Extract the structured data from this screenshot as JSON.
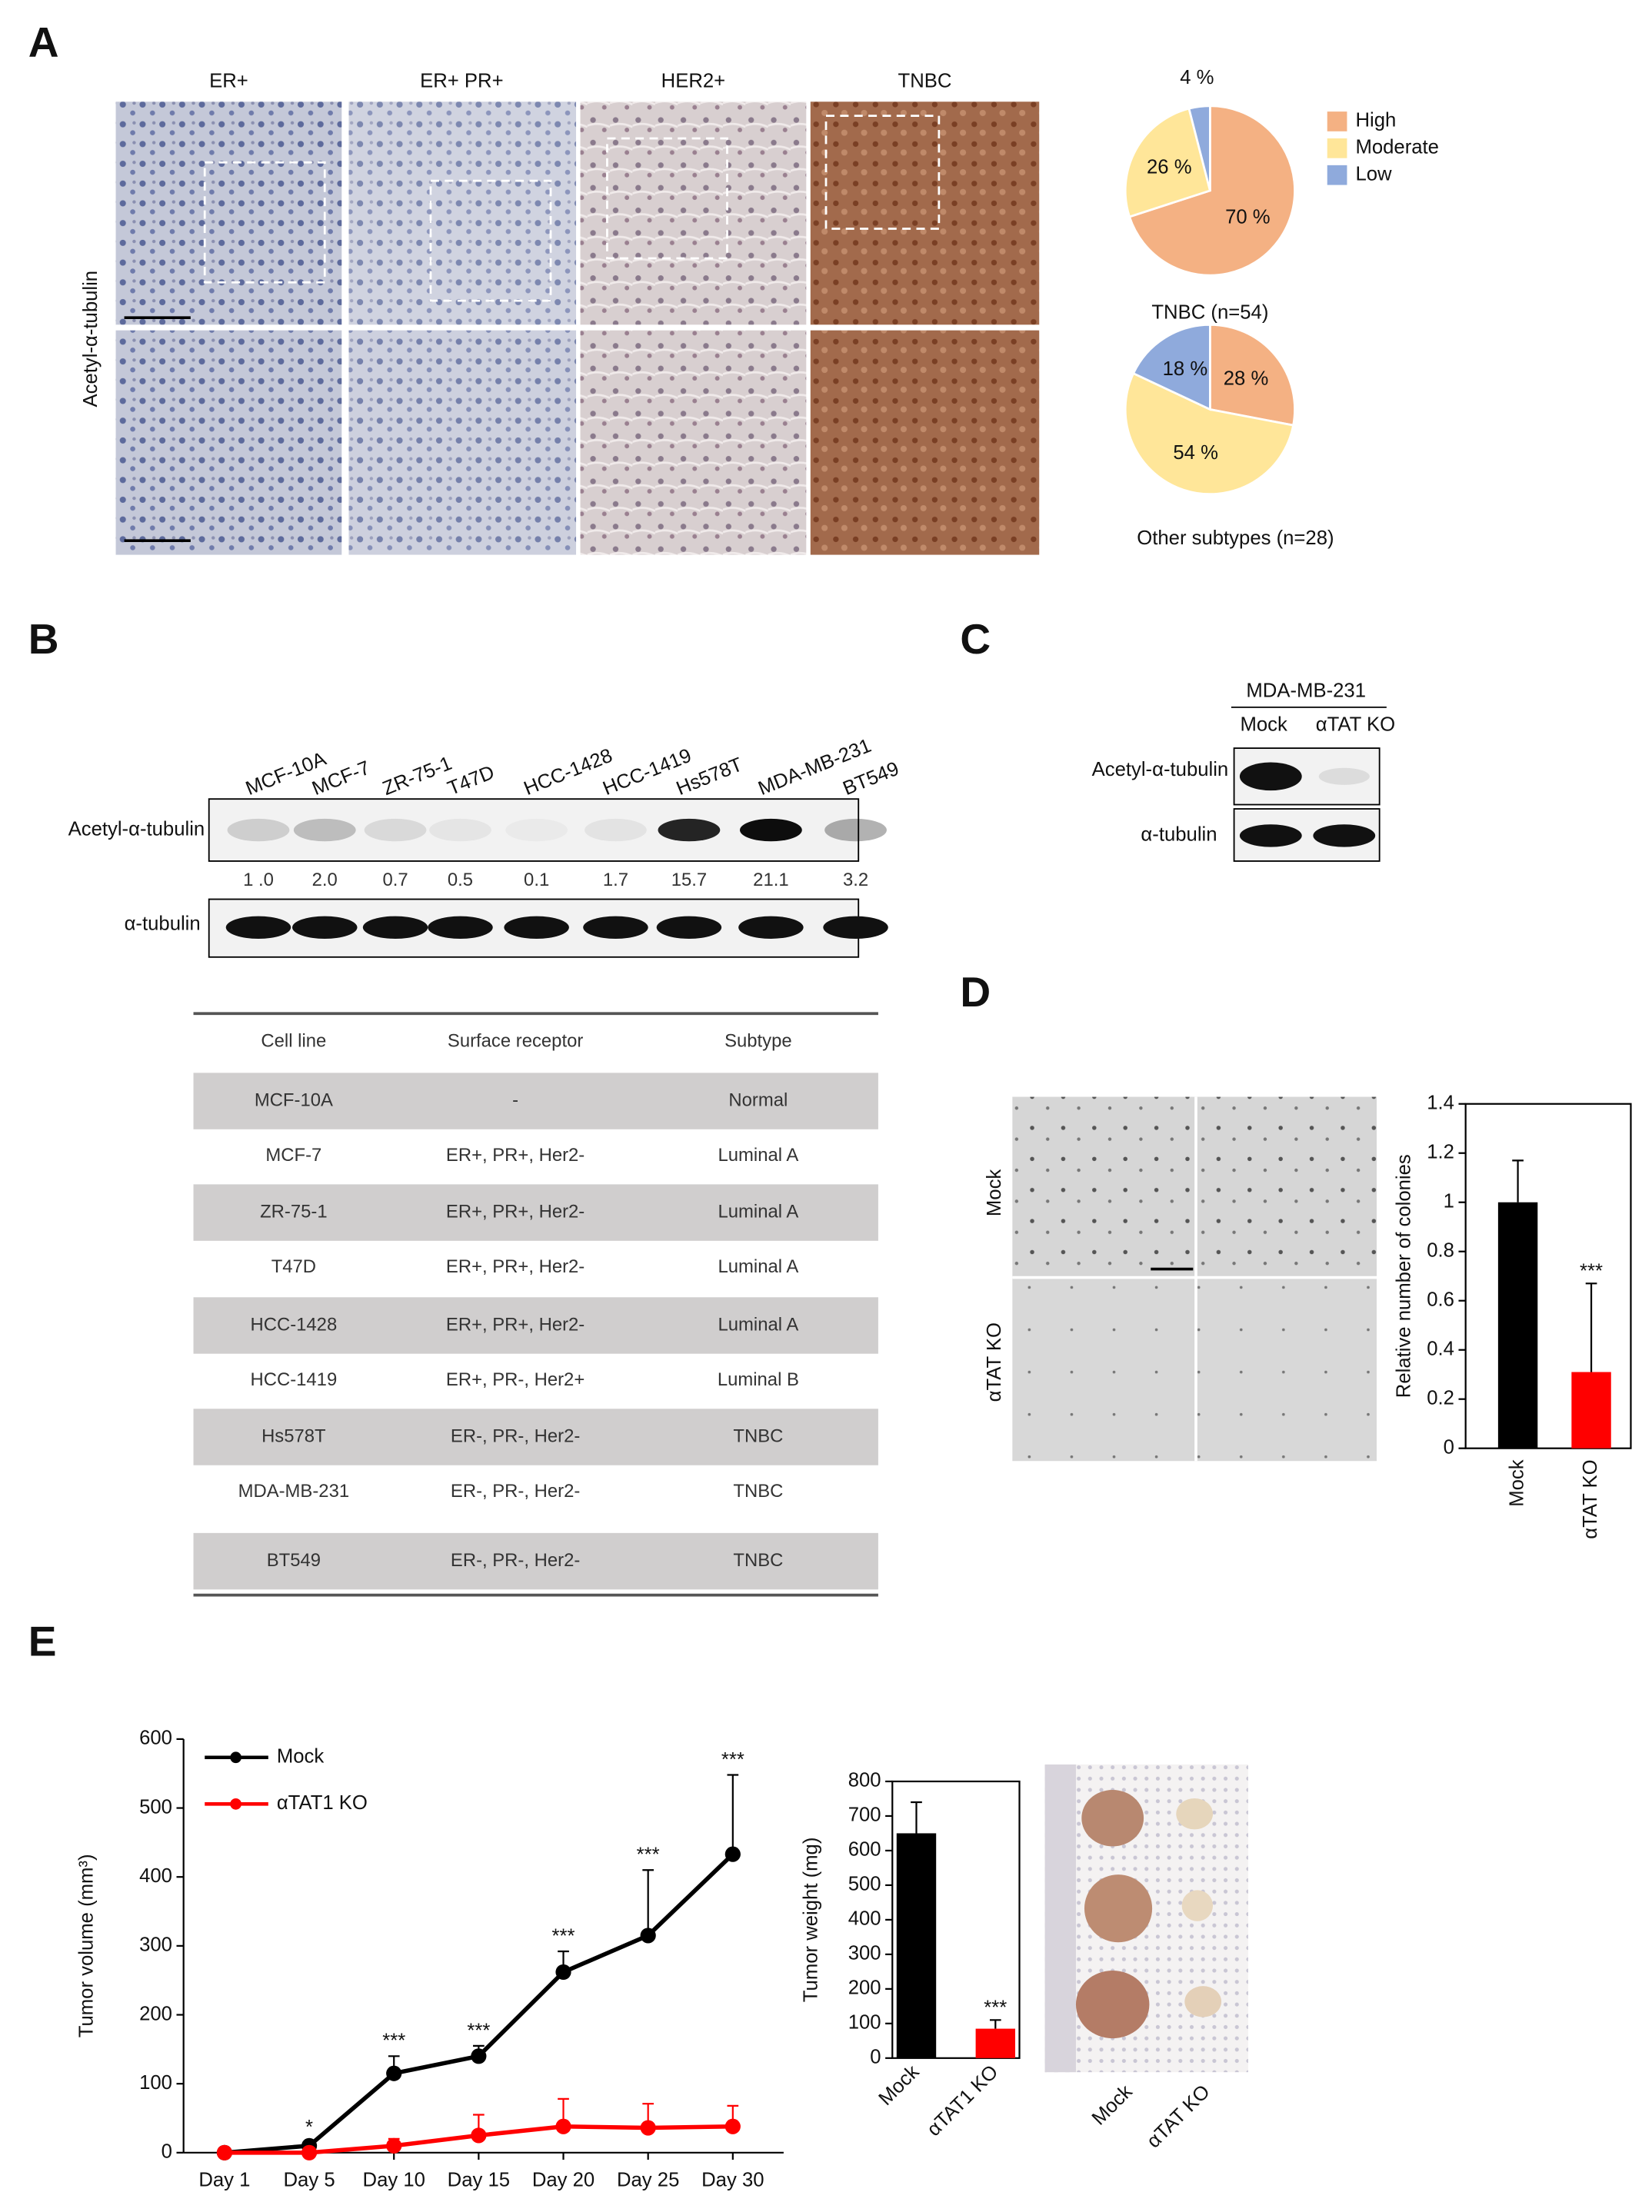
{
  "panel_labels": [
    "A",
    "B",
    "C",
    "D",
    "E"
  ],
  "panel_a": {
    "columns": [
      "ER+",
      "ER+  PR+",
      "HER2+",
      "TNBC"
    ],
    "row_label": "Acetyl-α-tubulin"
  },
  "panel_b": {
    "lanes": [
      "MCF-10A",
      "MCF-7",
      "ZR-75-1",
      "T47D",
      "HCC-1428",
      "HCC-1419",
      "Hs578T",
      "MDA-MB-231",
      "BT549"
    ],
    "blot_labels": [
      "Acetyl-α-tubulin",
      "α-tubulin"
    ],
    "quantification": [
      "1 .0",
      "2.0",
      "0.7",
      "0.5",
      "0.1",
      "1.7",
      "15.7",
      "21.1",
      "3.2"
    ]
  },
  "table": {
    "header": [
      "Cell line",
      "Surface receptor",
      "Subtype"
    ],
    "rows": [
      [
        "MCF-10A",
        "-",
        "Normal"
      ],
      [
        "MCF-7",
        "ER+, PR+, Her2-",
        "Luminal A"
      ],
      [
        "ZR-75-1",
        "ER+, PR+, Her2-",
        "Luminal A"
      ],
      [
        "T47D",
        "ER+, PR+, Her2-",
        "Luminal A"
      ],
      [
        "HCC-1428",
        "ER+, PR+, Her2-",
        "Luminal A"
      ],
      [
        "HCC-1419",
        "ER+, PR-, Her2+",
        "Luminal B"
      ],
      [
        "Hs578T",
        "ER-, PR-, Her2-",
        "TNBC"
      ],
      [
        "MDA-MB-231",
        "ER-, PR-, Her2-",
        "TNBC"
      ],
      [
        "BT549",
        "ER-, PR-, Her2-",
        "TNBC"
      ]
    ]
  },
  "panel_c": {
    "cell_line": "MDA-MB-231",
    "lanes": [
      "Mock",
      "αTAT KO"
    ],
    "blot_labels": [
      "Acetyl-α-tubulin",
      "α-tubulin"
    ]
  },
  "panel_d": {
    "row_labels": [
      "Mock",
      "αTAT KO"
    ]
  },
  "panel_e": {
    "photo_labels": [
      "Mock",
      "αTAT KO"
    ]
  },
  "chart_data": [
    {
      "type": "pie",
      "title": "TNBC  (n=54)",
      "categories": [
        "High",
        "Moderate",
        "Low"
      ],
      "values": [
        70,
        26,
        4
      ],
      "value_labels": [
        "70 %",
        "26 %",
        "4 %"
      ],
      "colors": [
        "#f4b183",
        "#ffe699",
        "#8faadc"
      ],
      "legend": "right"
    },
    {
      "type": "pie",
      "title": "Other subtypes (n=28)",
      "values": [
        28,
        54,
        18
      ],
      "value_labels": [
        "28 %",
        "54 %",
        "18 %"
      ],
      "colors": [
        "#f4b183",
        "#ffe699",
        "#8faadc"
      ]
    },
    {
      "type": "bar",
      "y_label": "Relative number of colonies",
      "categories": [
        "Mock",
        "αTAT KO"
      ],
      "values": [
        1,
        0.31
      ],
      "errors": [
        0.17,
        0.36
      ],
      "colors": [
        "#000000",
        "#ff0000"
      ],
      "significance": [
        null,
        "***"
      ],
      "ylim": [
        0,
        1.4
      ],
      "yticks": [
        0,
        0.2,
        0.4,
        0.6,
        0.8,
        1,
        1.2,
        1.4
      ]
    },
    {
      "type": "line",
      "y_label": "Tumor volume (mm³)",
      "categories": [
        "Day 1",
        "Day 5",
        "Day 10",
        "Day 15",
        "Day 20",
        "Day 25",
        "Day 30"
      ],
      "series": [
        {
          "name": "Mock",
          "color": "#000000",
          "values": [
            0,
            10,
            115,
            140,
            262,
            315,
            433
          ],
          "errors": [
            0,
            5,
            25,
            15,
            30,
            95,
            115
          ]
        },
        {
          "name": "αTAT1 KO",
          "color": "#ff0000",
          "values": [
            0,
            0,
            10,
            25,
            38,
            36,
            38
          ],
          "errors": [
            0,
            3,
            10,
            30,
            40,
            35,
            30
          ]
        }
      ],
      "significance": [
        null,
        "*",
        "***",
        "***",
        "***",
        "***",
        "***"
      ],
      "ylim": [
        0,
        600
      ],
      "yticks": [
        0,
        100,
        200,
        300,
        400,
        500,
        600
      ],
      "legend": "upper left"
    },
    {
      "type": "bar",
      "y_label": "Tumor weight (mg)",
      "categories": [
        "Mock",
        "αTAT1 KO"
      ],
      "values": [
        650,
        85
      ],
      "errors": [
        90,
        25
      ],
      "colors": [
        "#000000",
        "#ff0000"
      ],
      "significance": [
        null,
        "***"
      ],
      "ylim": [
        0,
        800
      ],
      "yticks": [
        0,
        100,
        200,
        300,
        400,
        500,
        600,
        700,
        800
      ]
    }
  ]
}
